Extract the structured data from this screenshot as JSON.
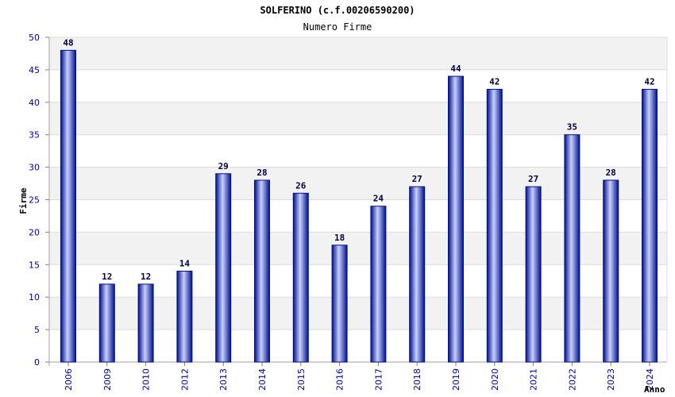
{
  "chart_data": {
    "type": "bar",
    "title": "SOLFERINO (c.f.00206590200)",
    "subtitle": "Numero Firme",
    "xlabel": "Anno",
    "ylabel": "Firme",
    "categories": [
      "2006",
      "2009",
      "2010",
      "2012",
      "2013",
      "2014",
      "2015",
      "2016",
      "2017",
      "2018",
      "2019",
      "2020",
      "2021",
      "2022",
      "2023",
      "2024"
    ],
    "values": [
      48,
      12,
      12,
      14,
      29,
      28,
      26,
      18,
      24,
      27,
      44,
      42,
      27,
      35,
      28,
      42
    ],
    "ylim": [
      0,
      50
    ],
    "yticks": [
      0,
      5,
      10,
      15,
      20,
      25,
      30,
      35,
      40,
      45,
      50
    ],
    "grid": true,
    "legend": "none",
    "colors": {
      "bar_dark": "#00108a",
      "bar_light": "#c8d0ff",
      "band": "#f2f2f2",
      "tick_text": "#0000a0"
    }
  }
}
